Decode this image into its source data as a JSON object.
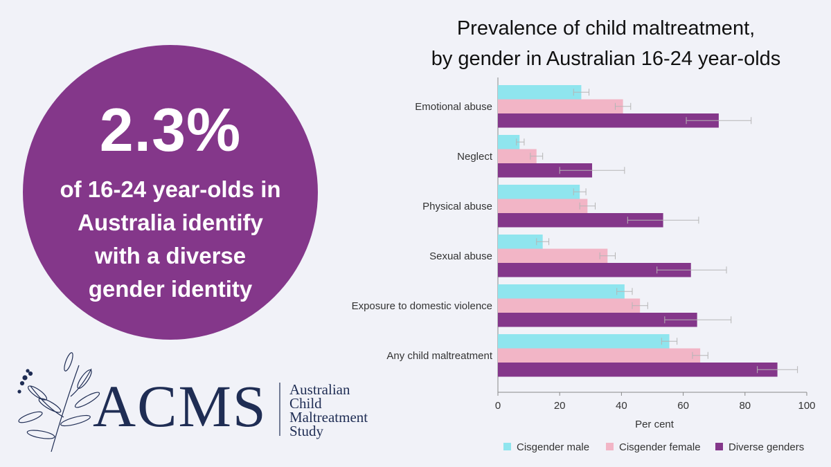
{
  "infographic": {
    "stat_value": "2.3%",
    "stat_text": "of 16-24 year-olds in Australia identify with a diverse gender identity",
    "colors": {
      "circle": "#84378a",
      "background": "#f1f2f8",
      "logo": "#1f2d54"
    }
  },
  "logo": {
    "acronym": "ACMS",
    "line1": "Australian",
    "line2": "Child",
    "line3": "Maltreatment",
    "line4": "Study",
    "icon": "eucalyptus-branch-icon"
  },
  "chart_data": {
    "type": "bar",
    "orientation": "horizontal",
    "title": "Prevalence of child maltreatment, by gender in Australian 16-24 year-olds",
    "title_line1": "Prevalence of child maltreatment,",
    "title_line2": "by gender in Australian 16-24 year-olds",
    "xlabel": "Per cent",
    "ylabel": "",
    "xlim": [
      0,
      100
    ],
    "x_ticks": [
      0,
      20,
      40,
      60,
      80,
      100
    ],
    "categories": [
      "Emotional abuse",
      "Neglect",
      "Physical abuse",
      "Sexual abuse",
      "Exposure to domestic violence",
      "Any child maltreatment"
    ],
    "series": [
      {
        "name": "Cisgender male",
        "color": "#8fe5ee",
        "values": [
          27,
          7,
          26.5,
          14.5,
          41,
          55.5
        ],
        "error_low": [
          24.5,
          6,
          24.5,
          12.5,
          38.5,
          53
        ],
        "error_high": [
          29.5,
          8.5,
          28.5,
          16.5,
          43.5,
          58
        ]
      },
      {
        "name": "Cisgender female",
        "color": "#f2b5c6",
        "values": [
          40.5,
          12.5,
          29,
          35.5,
          46,
          65.5
        ],
        "error_low": [
          38,
          10.5,
          26.5,
          33,
          43.5,
          63
        ],
        "error_high": [
          43,
          14.5,
          31.5,
          38,
          48.5,
          68
        ]
      },
      {
        "name": "Diverse genders",
        "color": "#84378a",
        "values": [
          71.5,
          30.5,
          53.5,
          62.5,
          64.5,
          90.5
        ],
        "error_low": [
          61,
          20,
          42,
          51.5,
          54,
          84
        ],
        "error_high": [
          82,
          41,
          65,
          74,
          75.5,
          97
        ]
      }
    ],
    "error_bars": true,
    "grid": false,
    "legend_position": "bottom"
  }
}
